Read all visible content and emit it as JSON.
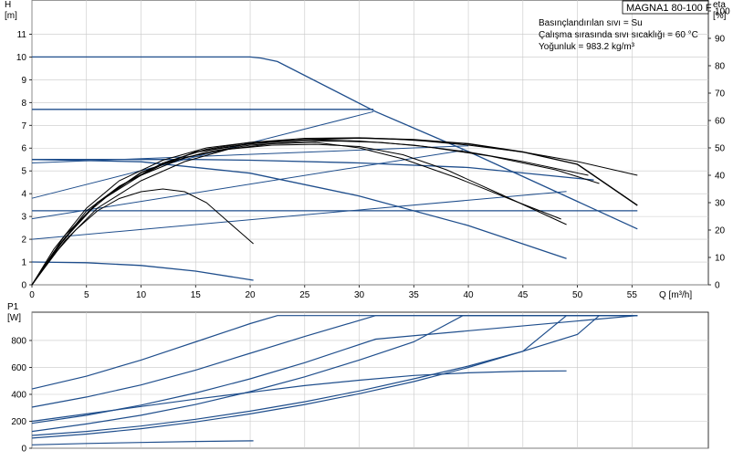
{
  "chart_data": [
    {
      "type": "line",
      "name": "head-and-efficiency",
      "title": "MAGNA1 80-100 F",
      "annotations": [
        "Basınçlandırılan sıvı = Su",
        "Çalışma sırasında sıvı sıcaklığı = 60 °C",
        "Yoğunluk = 983.2 kg/m³"
      ],
      "xlabel": "Q [m³/h]",
      "ylabel": "H",
      "ylabel_unit": "[m]",
      "y2label": "eta",
      "y2label_unit": "[%]",
      "xlim": [
        0,
        62
      ],
      "ylim": [
        0,
        12.5
      ],
      "y2lim": [
        0,
        104
      ],
      "xticks": [
        0,
        5,
        10,
        15,
        20,
        25,
        30,
        35,
        40,
        45,
        50,
        55
      ],
      "yticks": [
        0,
        1,
        2,
        3,
        4,
        5,
        6,
        7,
        8,
        9,
        10,
        11
      ],
      "y2ticks": [
        0,
        10,
        20,
        30,
        40,
        50,
        60,
        70,
        80,
        90,
        100
      ],
      "grid": true,
      "head_color": "#1f4e8c",
      "eta_color": "#000000",
      "head_curves": [
        {
          "x": [
            0,
            20,
            21,
            22.5,
            31.5,
            40,
            55.5
          ],
          "y": [
            10.0,
            10.0,
            9.95,
            9.8,
            7.6,
            5.85,
            2.45
          ]
        },
        {
          "x": [
            0,
            31.3
          ],
          "y": [
            7.7,
            7.7
          ]
        },
        {
          "x": [
            0,
            15,
            20,
            30,
            40,
            51.5
          ],
          "y": [
            5.5,
            5.5,
            5.47,
            5.35,
            5.15,
            4.6
          ]
        },
        {
          "x": [
            0,
            10,
            20,
            30,
            40,
            49
          ],
          "y": [
            5.5,
            5.4,
            4.9,
            3.9,
            2.6,
            1.15
          ]
        },
        {
          "x": [
            0,
            5,
            10,
            15,
            20.3
          ],
          "y": [
            1.0,
            0.97,
            0.85,
            0.6,
            0.2
          ]
        },
        {
          "x": [
            0,
            55.5
          ],
          "y": [
            3.25,
            3.25
          ]
        }
      ],
      "system_curves": [
        {
          "x": [
            0,
            31.3
          ],
          "y": [
            3.8,
            7.6
          ]
        },
        {
          "x": [
            0,
            39.5
          ],
          "y": [
            2.9,
            5.9
          ]
        },
        {
          "x": [
            0,
            49
          ],
          "y": [
            2.0,
            4.1
          ]
        },
        {
          "x": [
            0,
            40
          ],
          "y": [
            5.35,
            6.1
          ]
        }
      ],
      "eta_curves": [
        {
          "x": [
            0,
            2,
            5,
            8,
            12,
            16,
            20,
            25,
            30,
            33,
            36,
            40,
            45,
            50,
            55.5
          ],
          "y": [
            0,
            12,
            26,
            36,
            44.5,
            49.5,
            52,
            53.5,
            53.7,
            53.3,
            52.5,
            51,
            48.5,
            45,
            40
          ]
        },
        {
          "x": [
            0,
            2,
            5,
            8,
            12,
            16,
            20,
            25,
            30,
            35,
            40,
            45,
            51
          ],
          "y": [
            0,
            13,
            28,
            38,
            45.5,
            50,
            52,
            53,
            52.5,
            51,
            48.5,
            45,
            40
          ]
        },
        {
          "x": [
            0,
            2,
            5,
            8,
            12,
            16,
            20,
            25,
            28,
            32,
            36,
            42,
            48,
            52
          ],
          "y": [
            0,
            12,
            27,
            36,
            44,
            48.5,
            51,
            52.4,
            52.5,
            52,
            50.5,
            47,
            42,
            37
          ]
        },
        {
          "x": [
            0,
            3,
            6,
            10,
            14,
            18,
            22,
            26,
            30,
            34,
            38,
            43,
            49
          ],
          "y": [
            0,
            18,
            30,
            40,
            46.5,
            49.5,
            51,
            51.3,
            50.5,
            47.5,
            42,
            33,
            22
          ]
        },
        {
          "x": [
            0,
            3,
            6,
            10,
            14,
            18,
            22,
            26,
            30,
            34,
            39,
            44,
            48.5
          ],
          "y": [
            0,
            16,
            28,
            38,
            45,
            49.5,
            51.5,
            52,
            50,
            46,
            39,
            31,
            24
          ]
        },
        {
          "x": [
            0,
            2,
            4,
            6,
            8,
            10,
            12,
            14,
            16,
            18,
            20.3
          ],
          "y": [
            0,
            11,
            20,
            27,
            31.5,
            34,
            35,
            34,
            30,
            23,
            15
          ]
        },
        {
          "x": [
            0,
            3,
            6,
            10,
            15,
            20,
            25,
            30,
            35,
            40,
            45,
            50,
            55.5
          ],
          "y": [
            0,
            17,
            30,
            41,
            48.5,
            51.5,
            53,
            53.6,
            53,
            51.5,
            48.5,
            44,
            29
          ]
        }
      ]
    },
    {
      "type": "line",
      "name": "power",
      "ylabel": "P1",
      "ylabel_unit": "[W]",
      "xlim": [
        0,
        62
      ],
      "ylim": [
        0,
        1010
      ],
      "yticks": [
        0,
        200,
        400,
        600,
        800
      ],
      "grid": true,
      "color": "#1f4e8c",
      "power_curves": [
        {
          "x": [
            0,
            5,
            10,
            15,
            20,
            22.5,
            55.5
          ],
          "y": [
            440,
            535,
            655,
            790,
            925,
            985,
            985
          ]
        },
        {
          "x": [
            0,
            5,
            10,
            15,
            20,
            25,
            31.5,
            55.5
          ],
          "y": [
            305,
            380,
            470,
            580,
            705,
            830,
            985,
            985
          ]
        },
        {
          "x": [
            0,
            5,
            10,
            15,
            20,
            25,
            31.5,
            55.5
          ],
          "y": [
            185,
            245,
            320,
            410,
            515,
            635,
            810,
            985
          ]
        },
        {
          "x": [
            0,
            5,
            10,
            15,
            20,
            25,
            30,
            35,
            39.5,
            55.5
          ],
          "y": [
            125,
            180,
            245,
            325,
            420,
            530,
            655,
            790,
            985,
            985
          ]
        },
        {
          "x": [
            0,
            5,
            10,
            15,
            20,
            25,
            30,
            35,
            40,
            45,
            49,
            55.5
          ],
          "y": [
            75,
            105,
            145,
            195,
            255,
            325,
            405,
            495,
            600,
            720,
            985,
            985
          ]
        },
        {
          "x": [
            0,
            5,
            10,
            15,
            20,
            25,
            30,
            35,
            40,
            45,
            50,
            52,
            55.5
          ],
          "y": [
            95,
            125,
            165,
            215,
            275,
            345,
            425,
            515,
            610,
            720,
            845,
            985,
            985
          ]
        },
        {
          "x": [
            0,
            5,
            10,
            15,
            20,
            25,
            30,
            35,
            40,
            45,
            49
          ],
          "y": [
            200,
            255,
            310,
            365,
            415,
            465,
            505,
            540,
            560,
            572,
            574
          ]
        },
        {
          "x": [
            0,
            5,
            10,
            15,
            20.3
          ],
          "y": [
            25,
            35,
            43,
            50,
            55
          ]
        }
      ]
    }
  ]
}
